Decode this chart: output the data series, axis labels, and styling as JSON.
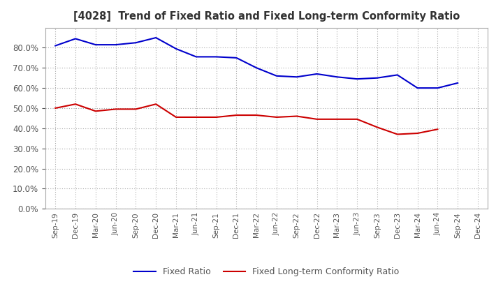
{
  "title": "[4028]  Trend of Fixed Ratio and Fixed Long-term Conformity Ratio",
  "x_labels": [
    "Sep-19",
    "Dec-19",
    "Mar-20",
    "Jun-20",
    "Sep-20",
    "Dec-20",
    "Mar-21",
    "Jun-21",
    "Sep-21",
    "Dec-21",
    "Mar-22",
    "Jun-22",
    "Sep-22",
    "Dec-22",
    "Mar-23",
    "Jun-23",
    "Sep-23",
    "Dec-23",
    "Mar-24",
    "Jun-24",
    "Sep-24",
    "Dec-24"
  ],
  "fixed_ratio": [
    81.0,
    84.5,
    81.5,
    81.5,
    82.5,
    85.0,
    79.5,
    75.5,
    75.5,
    75.0,
    70.0,
    66.0,
    65.5,
    67.0,
    65.5,
    64.5,
    65.0,
    66.5,
    60.0,
    60.0,
    62.5,
    null
  ],
  "fixed_lt_ratio": [
    50.0,
    52.0,
    48.5,
    49.5,
    49.5,
    52.0,
    45.5,
    45.5,
    45.5,
    46.5,
    46.5,
    45.5,
    46.0,
    44.5,
    44.5,
    44.5,
    40.5,
    37.0,
    37.5,
    39.5,
    null,
    null
  ],
  "ylim": [
    0,
    90
  ],
  "yticks": [
    0,
    10,
    20,
    30,
    40,
    50,
    60,
    70,
    80
  ],
  "line_color_fixed": "#0000CC",
  "line_color_lt": "#CC0000",
  "background_color": "#FFFFFF",
  "plot_bg_color": "#FFFFFF",
  "grid_color": "#AAAAAA",
  "title_color": "#333333",
  "tick_color": "#555555",
  "legend_fixed": "Fixed Ratio",
  "legend_lt": "Fixed Long-term Conformity Ratio"
}
